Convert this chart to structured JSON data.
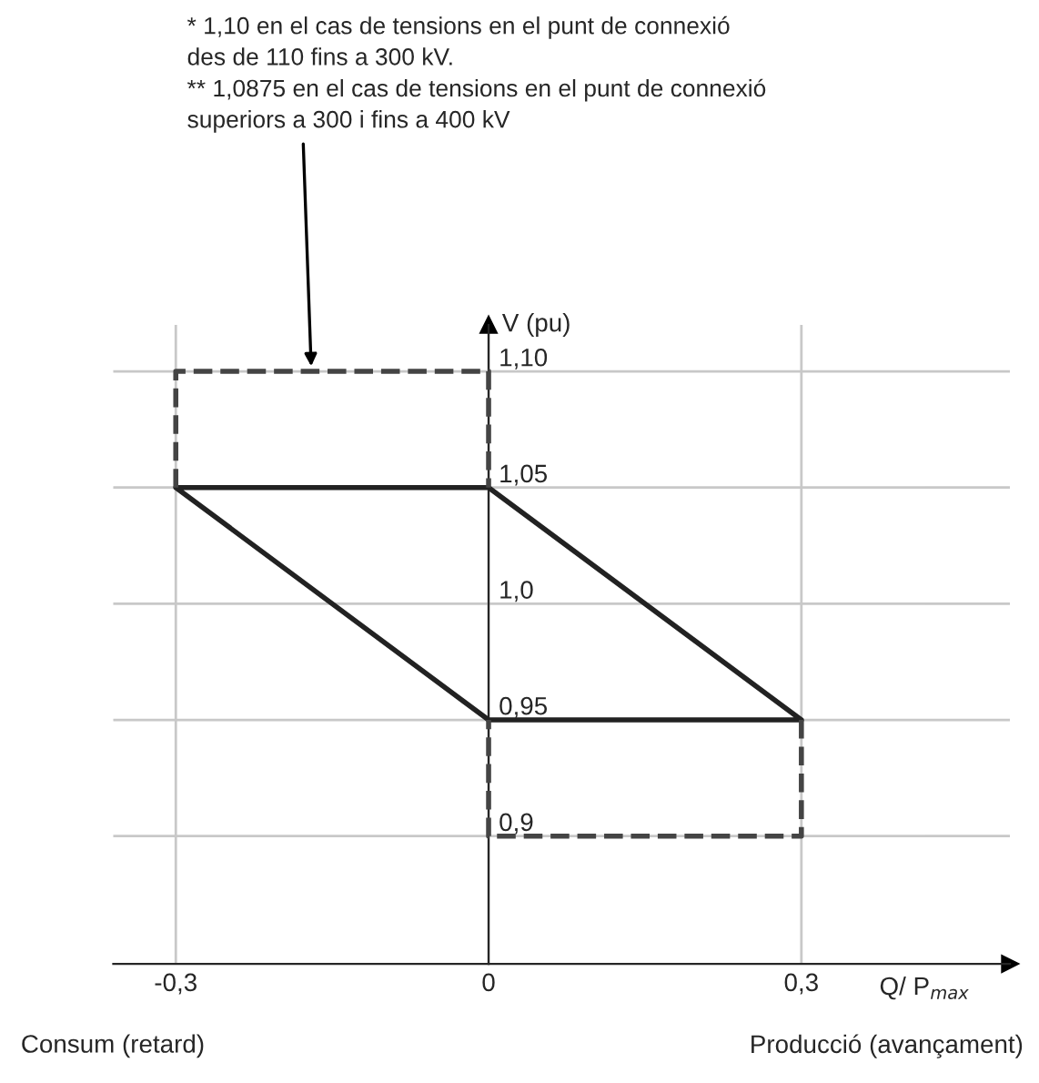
{
  "chart_data": {
    "type": "line",
    "xlabel": "Q/ P$_{max}$",
    "ylabel": "V (pu)",
    "xlim": [
      -0.36,
      0.5
    ],
    "ylim": [
      0.845,
      1.12
    ],
    "xticks": [
      {
        "value": -0.3,
        "label": "-0,3"
      },
      {
        "value": 0,
        "label": "0"
      },
      {
        "value": 0.3,
        "label": "0,3"
      }
    ],
    "yticks": [
      {
        "value": 0.9,
        "label": "0,9"
      },
      {
        "value": 0.95,
        "label": "0,95"
      },
      {
        "value": 1.0,
        "label": "1,0"
      },
      {
        "value": 1.05,
        "label": "1,05"
      },
      {
        "value": 1.1,
        "label": "1,10"
      }
    ],
    "grid": true,
    "series": [
      {
        "color": "#222222",
        "line_style": "solid",
        "x": [
          -0.3,
          0,
          0.3,
          null,
          0.3,
          0,
          -0.3
        ],
        "values": [
          1.05,
          1.05,
          0.95,
          null,
          0.95,
          0.95,
          1.05
        ]
      },
      {
        "color": "#444444",
        "line_style": "dashed",
        "x": [
          -0.3,
          -0.3,
          0,
          0,
          null,
          0.3,
          0.3,
          0,
          0
        ],
        "values": [
          1.05,
          1.1,
          1.1,
          1.05,
          null,
          0.95,
          0.9,
          0.9,
          0.95
        ]
      }
    ],
    "annotations": [
      {
        "text": "* 1,10 en el cas de tensions en el punt de connexió\ndes de 110 fins a 300 kV.\n** 1,0875 en el cas de tensions en el punt de connexió\nsuperiors a 300 i fins a 400 kV",
        "x": -0.17,
        "y": 1.1
      },
      "Consum (retard)",
      "Producció (avançament)"
    ]
  }
}
